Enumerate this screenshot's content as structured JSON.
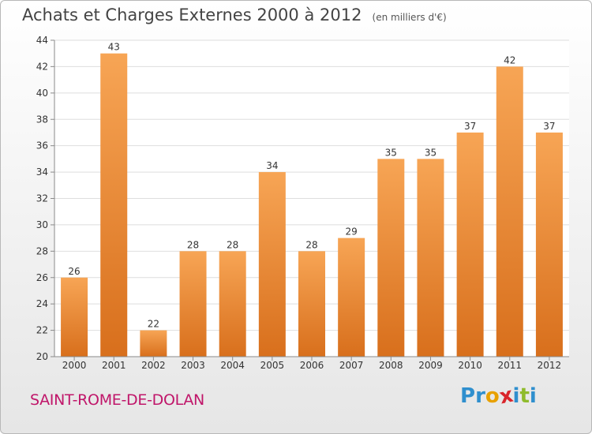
{
  "header": {
    "title": "Achats et Charges Externes 2000 à 2012",
    "unit": "(en milliers d'€)"
  },
  "commune": "SAINT-ROME-DE-DOLAN",
  "logo": {
    "letters": [
      {
        "ch": "P",
        "color": "#2f8fce"
      },
      {
        "ch": "r",
        "color": "#2f8fce"
      },
      {
        "ch": "o",
        "color": "#e8a100"
      },
      {
        "ch": "x",
        "color": "#d9252b"
      },
      {
        "ch": "i",
        "color": "#2f8fce"
      },
      {
        "ch": "t",
        "color": "#8fbb2c"
      },
      {
        "ch": "i",
        "color": "#2f8fce"
      }
    ]
  },
  "colors": {
    "bar_top": "#f7a555",
    "bar_bottom": "#d86f1c",
    "grid": "#dedede",
    "axis": "#8a8a8a",
    "text": "#333333"
  },
  "chart_data": {
    "type": "bar",
    "title": "Achats et Charges Externes 2000 à 2012",
    "subtitle": "(en milliers d'€)",
    "categories": [
      "2000",
      "2001",
      "2002",
      "2003",
      "2004",
      "2005",
      "2006",
      "2007",
      "2008",
      "2009",
      "2010",
      "2011",
      "2012"
    ],
    "values": [
      26,
      43,
      22,
      28,
      28,
      34,
      28,
      29,
      35,
      35,
      37,
      42,
      37
    ],
    "ylim": [
      20,
      44
    ],
    "yticks": [
      20,
      22,
      24,
      26,
      28,
      30,
      32,
      34,
      36,
      38,
      40,
      42,
      44
    ],
    "xlabel": "",
    "ylabel": "",
    "grid": true
  }
}
